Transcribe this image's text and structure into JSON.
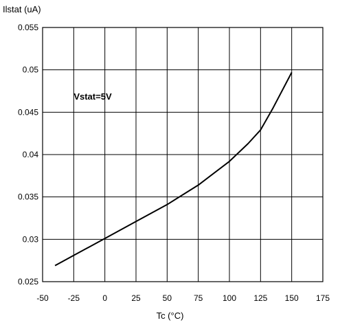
{
  "chart_data": {
    "type": "line",
    "title": "",
    "ylabel": "Ilstat (uA)",
    "xlabel": "Tc (°C)",
    "xlim": [
      -50,
      175
    ],
    "ylim": [
      0.025,
      0.055
    ],
    "xticks": [
      -50,
      -25,
      0,
      25,
      50,
      75,
      100,
      125,
      150,
      175
    ],
    "xtick_labels": [
      "-50",
      "-25",
      "0",
      "25",
      "50",
      "75",
      "100",
      "125",
      "150",
      "175"
    ],
    "yticks": [
      0.025,
      0.03,
      0.035,
      0.04,
      0.045,
      0.05,
      0.055
    ],
    "ytick_labels": [
      "0.025",
      "0.03",
      "0.035",
      "0.04",
      "0.045",
      "0.05",
      "0.055"
    ],
    "grid": true,
    "annotation": {
      "text": "Vstat=5V",
      "x": -25,
      "y": 0.0465
    },
    "series": [
      {
        "color": "#000000",
        "x": [
          -40,
          -25,
          0,
          25,
          50,
          75,
          100,
          115,
          125,
          135,
          150
        ],
        "y": [
          0.0269,
          0.0281,
          0.0301,
          0.0321,
          0.0341,
          0.0364,
          0.0392,
          0.0413,
          0.0429,
          0.0455,
          0.0497
        ]
      }
    ]
  }
}
